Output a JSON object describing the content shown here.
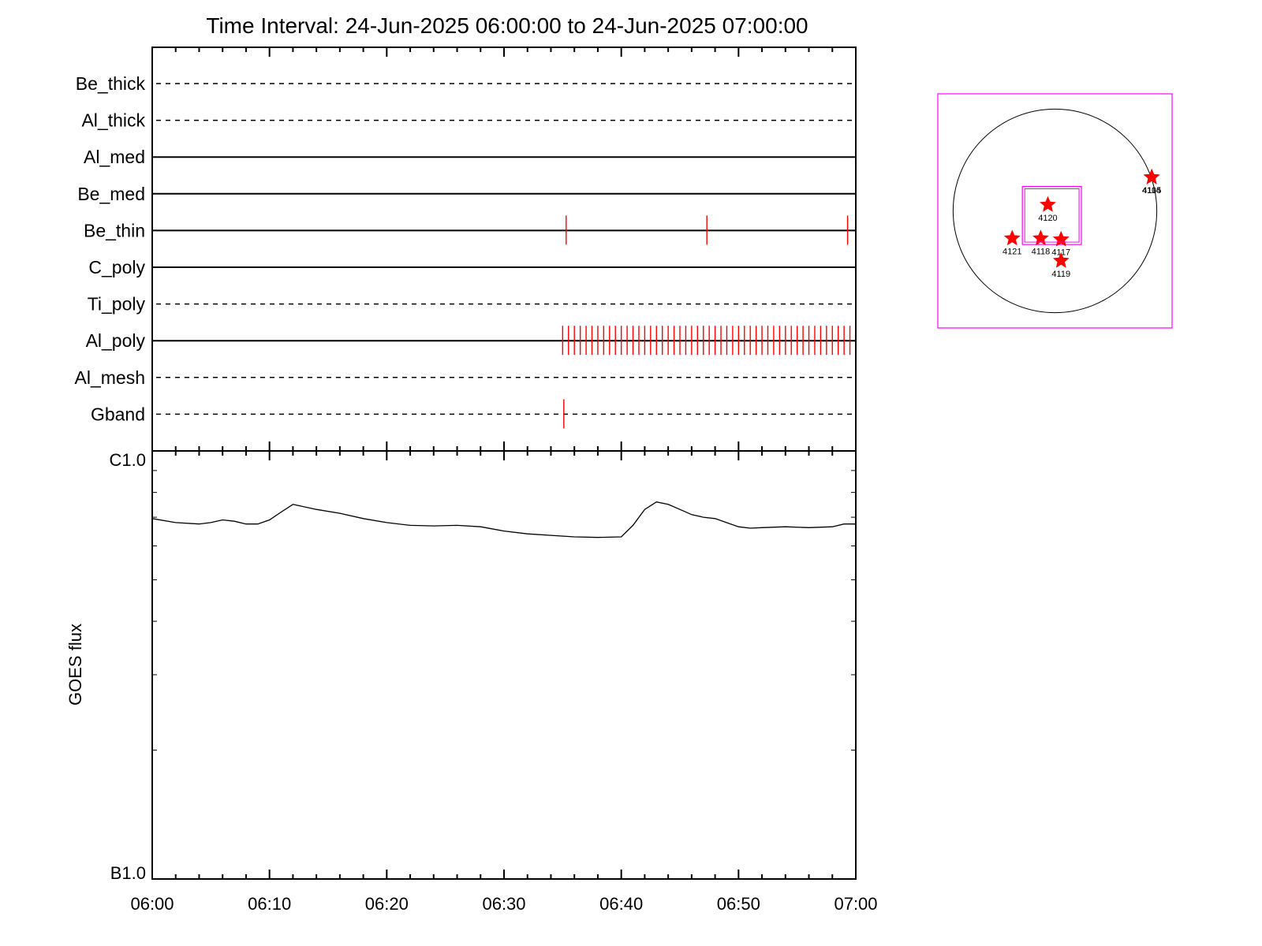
{
  "chart_data": {
    "title": "Time Interval: 24-Jun-2025 06:00:00 to 24-Jun-2025 07:00:00",
    "colors": {
      "axis": "#000000",
      "event": "#ff0000",
      "box": "#ff00ff",
      "curve": "#000000"
    },
    "timeline": {
      "type": "event-timeline",
      "x_range_minutes": [
        0,
        60
      ],
      "rows": [
        {
          "label": "Be_thick",
          "style": "dashed",
          "events": []
        },
        {
          "label": "Al_thick",
          "style": "dashed",
          "events": []
        },
        {
          "label": "Al_med",
          "style": "solid",
          "events": []
        },
        {
          "label": "Be_med",
          "style": "solid",
          "events": []
        },
        {
          "label": "Be_thin",
          "style": "solid",
          "events": [
            35.3,
            47.3,
            59.3
          ]
        },
        {
          "label": "C_poly",
          "style": "solid",
          "events": []
        },
        {
          "label": "Ti_poly",
          "style": "dashed",
          "events": []
        },
        {
          "label": "Al_poly",
          "style": "solid",
          "event_range": [
            35.0,
            59.5
          ],
          "event_step": 0.5,
          "events": []
        },
        {
          "label": "Al_mesh",
          "style": "dashed",
          "events": []
        },
        {
          "label": "Gband",
          "style": "dashed",
          "events": [
            35.1
          ]
        }
      ]
    },
    "goes": {
      "type": "line",
      "scale": "log",
      "ylabel": "GOES flux",
      "ytick_labels": [
        "C1.0",
        "B1.0"
      ],
      "ylim": [
        1e-07,
        1e-06
      ],
      "x_ticks": [
        "06:00",
        "06:10",
        "06:20",
        "06:30",
        "06:40",
        "06:50",
        "07:00"
      ],
      "x": [
        0,
        2,
        4,
        5,
        6,
        7,
        8,
        9,
        10,
        11,
        12,
        14,
        16,
        18,
        20,
        22,
        24,
        26,
        28,
        30,
        32,
        34,
        36,
        38,
        40,
        41,
        42,
        43,
        44,
        45,
        46,
        47,
        48,
        50,
        51,
        52,
        54,
        56,
        58,
        59,
        60
      ],
      "y": [
        6.95e-07,
        6.8e-07,
        6.75e-07,
        6.8e-07,
        6.9e-07,
        6.85e-07,
        6.75e-07,
        6.75e-07,
        6.9e-07,
        7.2e-07,
        7.5e-07,
        7.3e-07,
        7.15e-07,
        6.95e-07,
        6.8e-07,
        6.7e-07,
        6.68e-07,
        6.7e-07,
        6.65e-07,
        6.5e-07,
        6.4e-07,
        6.35e-07,
        6.3e-07,
        6.28e-07,
        6.3e-07,
        6.7e-07,
        7.3e-07,
        7.6e-07,
        7.5e-07,
        7.3e-07,
        7.1e-07,
        7e-07,
        6.95e-07,
        6.65e-07,
        6.6e-07,
        6.62e-07,
        6.65e-07,
        6.62e-07,
        6.65e-07,
        6.75e-07,
        6.75e-07
      ]
    },
    "sun_map": {
      "type": "scatter",
      "xlim": [
        -1.15,
        1.15
      ],
      "ylim": [
        -1.15,
        1.15
      ],
      "disk_radius": 1.0,
      "zoom_box": {
        "x": [
          -0.32,
          0.26
        ],
        "y": [
          -0.33,
          0.24
        ]
      },
      "regions": [
        {
          "label": "4120",
          "x": -0.07,
          "y": 0.06
        },
        {
          "label": "4121",
          "x": -0.42,
          "y": -0.27
        },
        {
          "label": "4118",
          "x": -0.14,
          "y": -0.27
        },
        {
          "label": "4117",
          "x": 0.06,
          "y": -0.28
        },
        {
          "label": "4119",
          "x": 0.06,
          "y": -0.49
        },
        {
          "label": "4105",
          "x": 0.95,
          "y": 0.33
        },
        {
          "label": "4114",
          "x": 0.95,
          "y": 0.33
        }
      ]
    }
  }
}
